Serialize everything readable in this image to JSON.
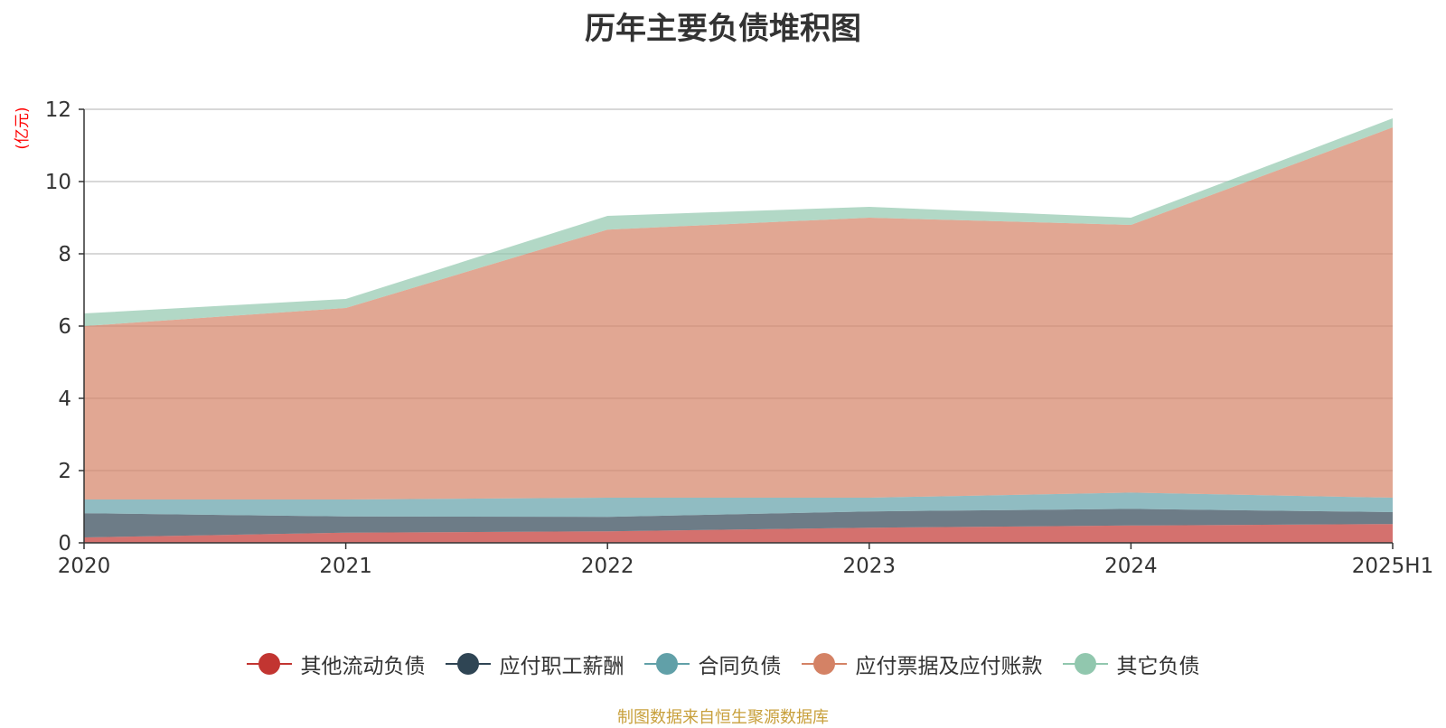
{
  "chart_data": {
    "type": "area",
    "stacked": true,
    "title": "历年主要负债堆积图",
    "ylabel": "(亿元)",
    "xlabel": "",
    "categories": [
      "2020",
      "2021",
      "2022",
      "2023",
      "2024",
      "2025H1"
    ],
    "ylim": [
      0,
      12
    ],
    "yticks": [
      0,
      2,
      4,
      6,
      8,
      10,
      12
    ],
    "grid": true,
    "legend_position": "bottom-center",
    "series": [
      {
        "name": "其他流动负债",
        "color": "#c23531",
        "values": [
          0.15,
          0.28,
          0.32,
          0.42,
          0.48,
          0.52
        ]
      },
      {
        "name": "应付职工薪酬",
        "color": "#2f4554",
        "values": [
          0.67,
          0.45,
          0.4,
          0.45,
          0.46,
          0.33
        ]
      },
      {
        "name": "合同负债",
        "color": "#61a0a8",
        "values": [
          0.38,
          0.47,
          0.53,
          0.38,
          0.45,
          0.4
        ]
      },
      {
        "name": "应付票据及应付账款",
        "color": "#d48265",
        "values": [
          4.8,
          5.3,
          7.42,
          7.75,
          7.41,
          10.25
        ]
      },
      {
        "name": "其它负债",
        "color": "#91c7ae",
        "values": [
          0.35,
          0.25,
          0.38,
          0.3,
          0.2,
          0.25
        ]
      }
    ]
  },
  "source_note": "制图数据来自恒生聚源数据库"
}
